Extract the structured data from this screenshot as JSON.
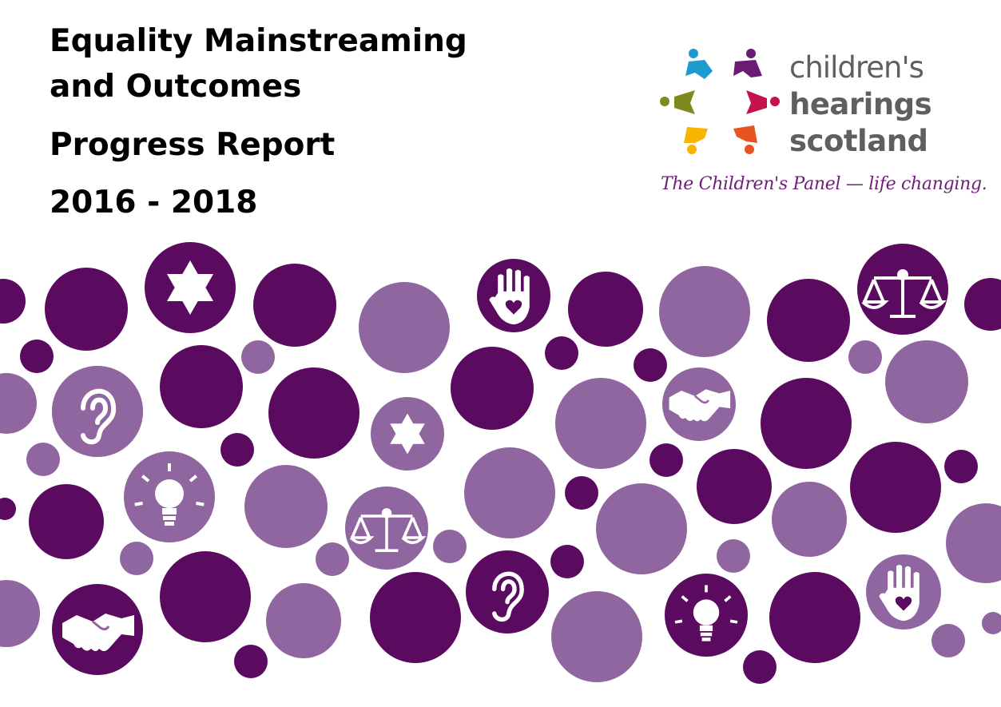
{
  "title": {
    "line1": "Equality Mainstreaming",
    "line2": "and Outcomes",
    "line3": "Progress Report",
    "line4": "2016 - 2018"
  },
  "logo": {
    "word1": "children's",
    "word2": "hearings",
    "word3": "scotland",
    "tagline": "The Children's Panel — life changing."
  },
  "colors": {
    "dark_purple": "#5a0a5f",
    "light_purple": "#9066a0",
    "logo_gray": "#5f5f5f",
    "tagline_purple": "#6e1f78"
  },
  "icons": [
    "star-of-david-icon",
    "ear-icon",
    "lightbulb-icon",
    "scales-icon",
    "handshake-icon",
    "hand-heart-icon"
  ]
}
